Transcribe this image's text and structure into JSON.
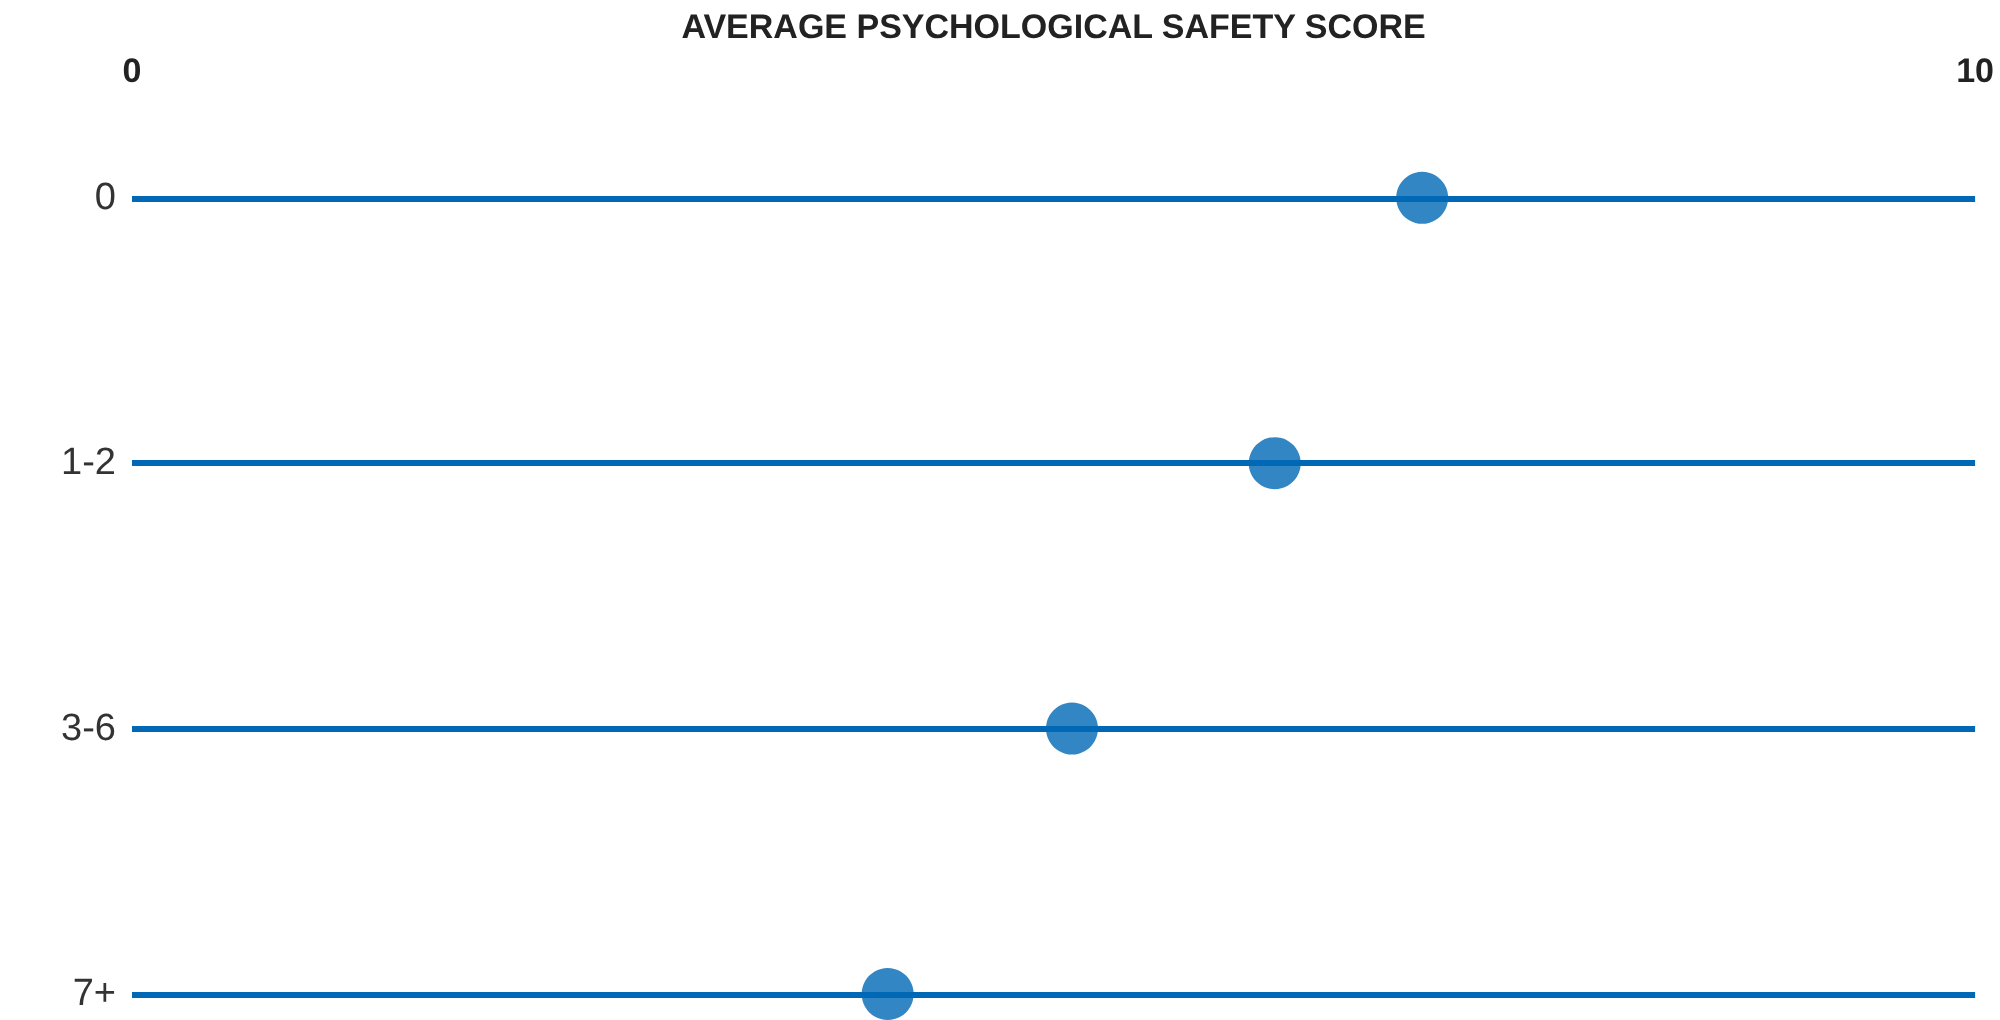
{
  "chart_data": {
    "type": "scatter",
    "orientation": "horizontal",
    "xlabel": "AVERAGE PSYCHOLOGICAL SAFETY SCORE",
    "categories": [
      "0",
      "1-2",
      "3-6",
      "7+"
    ],
    "series": [
      {
        "color": "#0068b5",
        "values": [
          7.0,
          6.2,
          5.1,
          4.1
        ]
      }
    ],
    "xlim": [
      0,
      10
    ],
    "xticks": [
      0,
      10
    ],
    "grid": "y",
    "marker": "circle"
  }
}
